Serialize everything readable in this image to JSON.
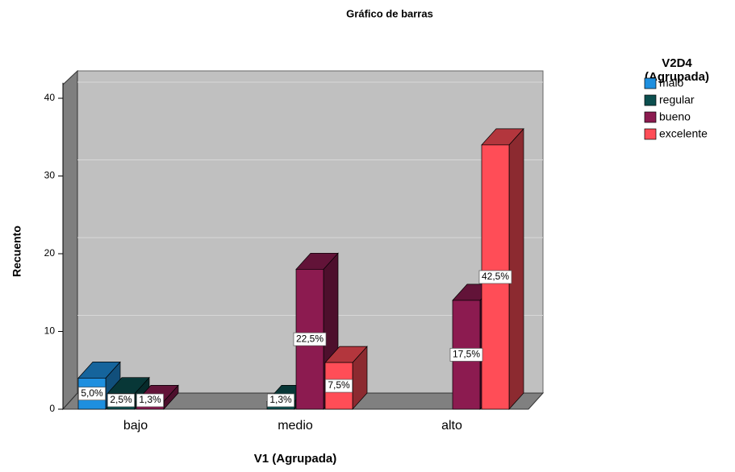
{
  "chart_data": {
    "type": "bar3d",
    "title": "Gráfico de barras",
    "x_label": "V1 (Agrupada)",
    "y_label": "Recuento",
    "legend_title": [
      "V2D4",
      "(Agrupada)"
    ],
    "categories": [
      "bajo",
      "medio",
      "alto"
    ],
    "series": [
      {
        "name": "malo",
        "color": "#1e8fdf",
        "values": [
          4,
          null,
          null
        ],
        "value_labels": [
          "5,0%",
          null,
          null
        ]
      },
      {
        "name": "regular",
        "color": "#0c4f4f",
        "values": [
          2,
          1,
          null
        ],
        "value_labels": [
          "2,5%",
          "1,3%",
          null
        ]
      },
      {
        "name": "bueno",
        "color": "#8c1b50",
        "values": [
          1,
          18,
          14
        ],
        "value_labels": [
          "1,3%",
          "22,5%",
          "17,5%"
        ]
      },
      {
        "name": "excelente",
        "color": "#ff4d57",
        "values": [
          null,
          6,
          34
        ],
        "value_labels": [
          null,
          "7,5%",
          "42,5%"
        ]
      }
    ],
    "ylim": [
      0,
      42
    ],
    "yticks": [
      0,
      10,
      20,
      30,
      40
    ],
    "grid": true
  }
}
